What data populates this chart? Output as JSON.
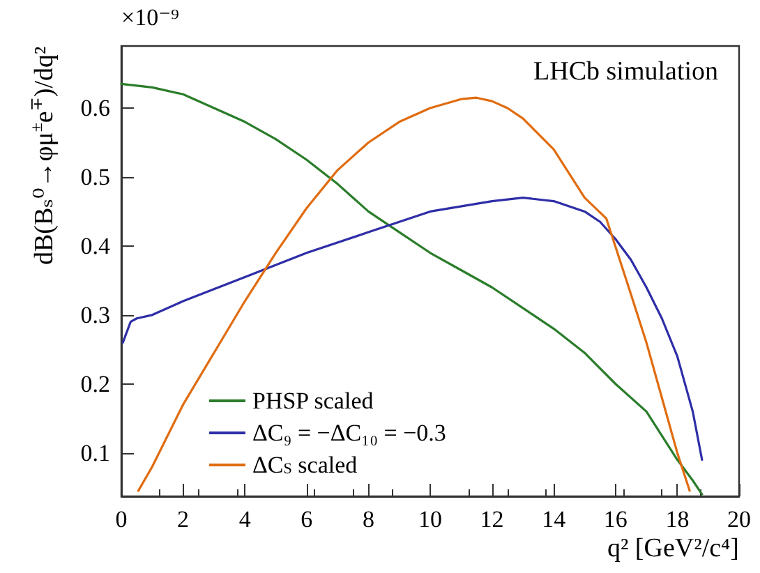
{
  "chart_data": {
    "type": "line",
    "xlabel": "q² [GeV²/c⁴]",
    "ylabel": "dB(Bₛ⁰→φμ$^{±}$e$^{∓}$)/dq²",
    "annotations": [
      "×10⁻⁹",
      "LHCb simulation"
    ],
    "xlim": [
      0,
      20
    ],
    "xticks": [
      0,
      2,
      4,
      6,
      8,
      10,
      12,
      14,
      16,
      18,
      20
    ],
    "ylim": [
      0.037,
      0.69
    ],
    "yticks": [
      0.1,
      0.2,
      0.3,
      0.4,
      0.5,
      0.6
    ],
    "grid": false,
    "legend": "bottom left",
    "marker": "none",
    "line_style": "solid",
    "series": [
      {
        "name": "PHSP scaled",
        "color": "#2a7d2a",
        "x": [
          0,
          1,
          2,
          3,
          4,
          5,
          6,
          7,
          8,
          9,
          10,
          11,
          12,
          13,
          14,
          15,
          16,
          17,
          18,
          18.5,
          18.8
        ],
        "values": [
          0.635,
          0.63,
          0.62,
          0.6,
          0.58,
          0.555,
          0.525,
          0.49,
          0.45,
          0.42,
          0.39,
          0.365,
          0.34,
          0.31,
          0.28,
          0.245,
          0.2,
          0.16,
          0.09,
          0.06,
          0.04
        ]
      },
      {
        "name": "ΔC₉ = −ΔC₁₀ = −0.3",
        "color": "#2e2ea8",
        "x": [
          0.05,
          0.3,
          0.5,
          1,
          2,
          4,
          6,
          8,
          10,
          12,
          13,
          14,
          15,
          15.5,
          16,
          16.5,
          17,
          17.5,
          18,
          18.5,
          18.8
        ],
        "values": [
          0.26,
          0.29,
          0.295,
          0.3,
          0.32,
          0.355,
          0.39,
          0.42,
          0.45,
          0.465,
          0.47,
          0.465,
          0.45,
          0.435,
          0.41,
          0.38,
          0.34,
          0.295,
          0.24,
          0.16,
          0.09
        ]
      },
      {
        "name": "ΔC$_{S}$ scaled",
        "color": "#e06c10",
        "x": [
          0.55,
          1,
          2,
          3,
          4,
          5,
          6,
          7,
          8,
          9,
          10,
          11,
          11.5,
          12,
          12.5,
          13,
          14,
          15,
          15.7,
          16.5,
          17,
          17.5,
          18,
          18.4
        ],
        "values": [
          0.045,
          0.08,
          0.17,
          0.245,
          0.32,
          0.39,
          0.455,
          0.51,
          0.55,
          0.58,
          0.6,
          0.613,
          0.615,
          0.61,
          0.6,
          0.585,
          0.54,
          0.47,
          0.44,
          0.33,
          0.26,
          0.18,
          0.1,
          0.045
        ]
      }
    ]
  }
}
